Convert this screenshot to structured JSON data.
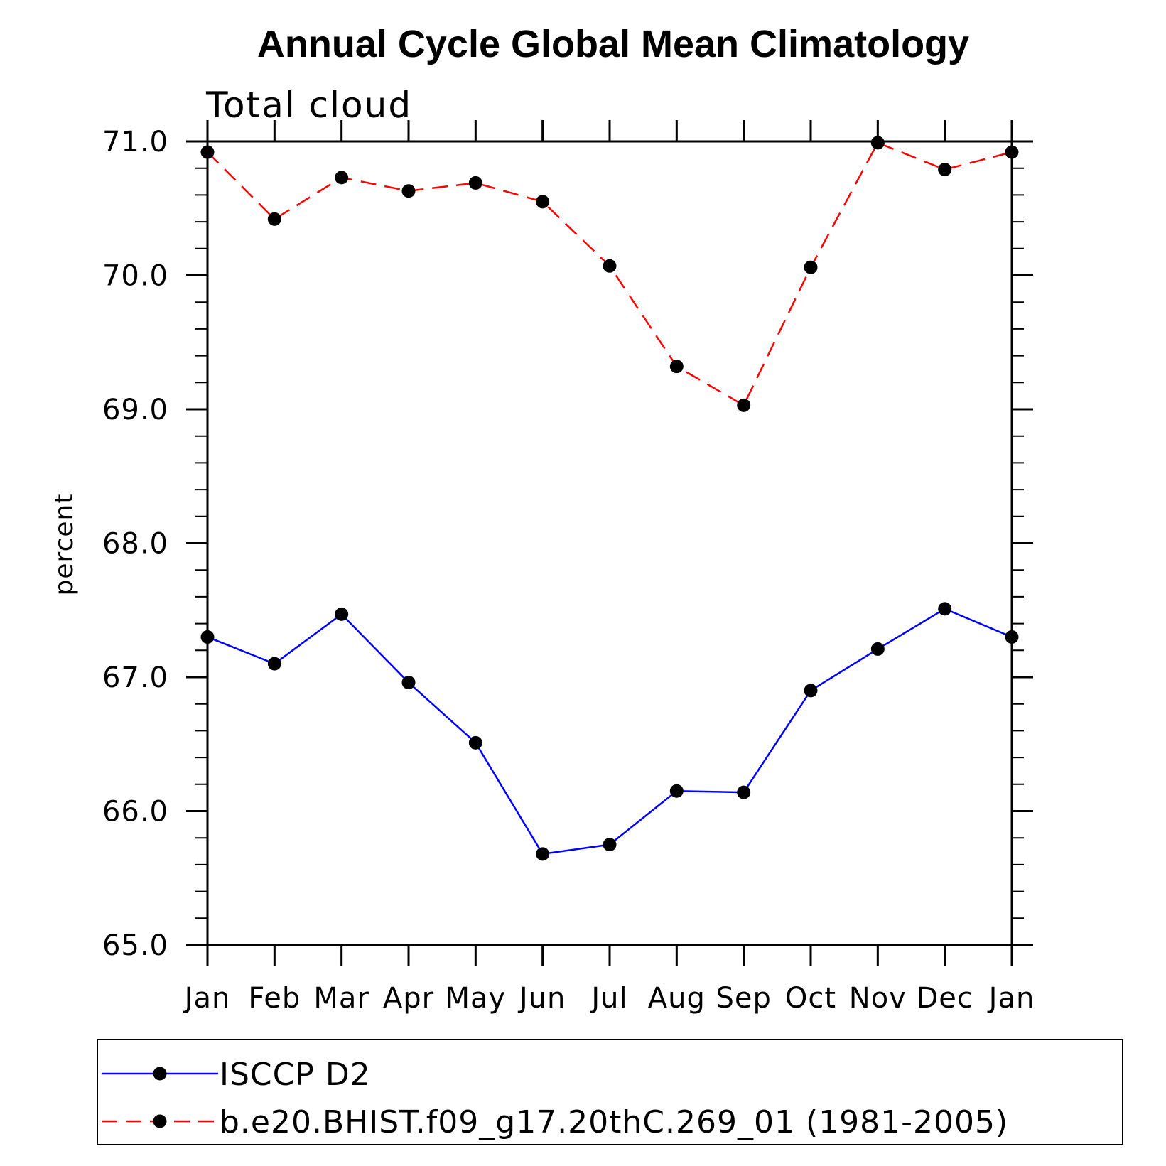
{
  "chart_data": {
    "type": "line",
    "title": "Annual Cycle Global Mean Climatology",
    "subtitle": "Total cloud",
    "xlabel": "",
    "ylabel": "percent",
    "categories": [
      "Jan",
      "Feb",
      "Mar",
      "Apr",
      "May",
      "Jun",
      "Jul",
      "Aug",
      "Sep",
      "Oct",
      "Nov",
      "Dec",
      "Jan"
    ],
    "ylim": [
      65.0,
      71.0
    ],
    "yticks": [
      "65.0",
      "66.0",
      "67.0",
      "68.0",
      "69.0",
      "70.0",
      "71.0"
    ],
    "grid": false,
    "legend_position": "bottom",
    "series": [
      {
        "name": "ISCCP D2",
        "color": "#0000ff",
        "line_style": "solid",
        "marker": "filled-circle",
        "values": [
          67.3,
          67.1,
          67.47,
          66.96,
          66.51,
          65.68,
          65.75,
          66.15,
          66.14,
          66.9,
          67.21,
          67.51,
          67.3
        ]
      },
      {
        "name": "b.e20.BHIST.f09_g17.20thC.269_01 (1981-2005)",
        "color": "#ff0000",
        "line_style": "dashed",
        "marker": "filled-circle",
        "values": [
          70.92,
          70.42,
          70.73,
          70.63,
          70.69,
          70.55,
          70.07,
          69.32,
          69.03,
          70.06,
          70.99,
          70.79,
          70.92
        ]
      }
    ]
  }
}
